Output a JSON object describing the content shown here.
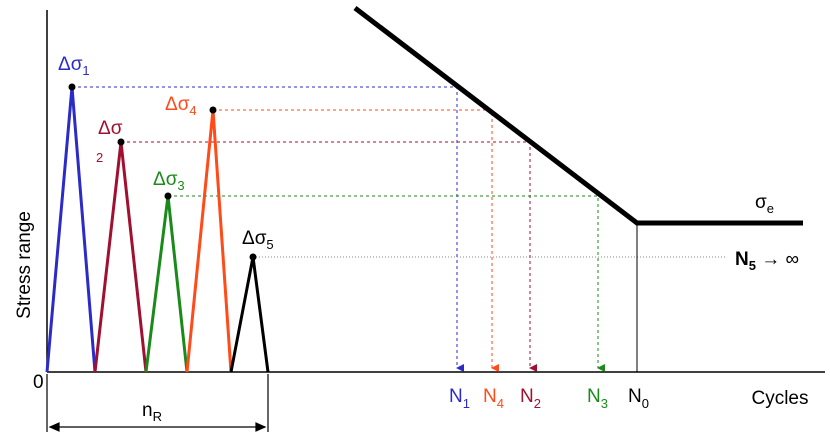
{
  "axes": {
    "y_label": "Stress range",
    "x_label": "Cycles",
    "origin": "0"
  },
  "stress_labels": [
    {
      "base": "Δσ",
      "sub": "1"
    },
    {
      "base": "Δσ",
      "sub": "2"
    },
    {
      "base": "Δσ",
      "sub": "3"
    },
    {
      "base": "Δσ",
      "sub": "4"
    },
    {
      "base": "Δσ",
      "sub": "5"
    }
  ],
  "endurance": {
    "base": "σ",
    "sub": "e"
  },
  "infinite": {
    "base": "N",
    "sub": "5",
    "rest": " → ∞"
  },
  "cycle_labels": [
    {
      "base": "N",
      "sub": "1"
    },
    {
      "base": "N",
      "sub": "4"
    },
    {
      "base": "N",
      "sub": "2"
    },
    {
      "base": "N",
      "sub": "3"
    },
    {
      "base": "N",
      "sub": "0"
    }
  ],
  "block": {
    "base": "n",
    "sub": "R"
  }
}
